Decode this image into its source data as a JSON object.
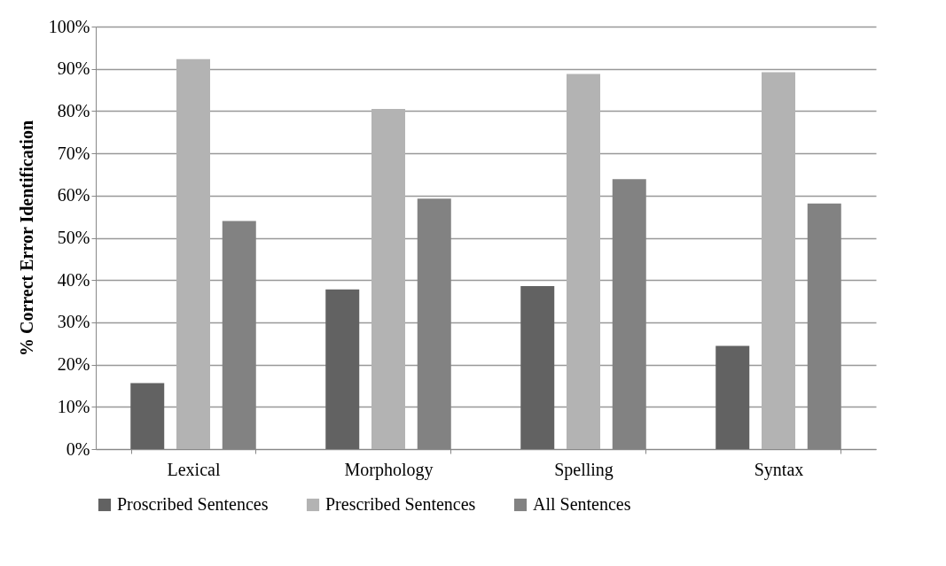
{
  "chart_data": {
    "type": "bar",
    "ylabel": "% Correct Error Identification",
    "categories": [
      "Lexical",
      "Morphology",
      "Spelling",
      "Syntax"
    ],
    "series": [
      {
        "name": "Proscribed Sentences",
        "color": "#626262",
        "values": [
          15.6,
          37.8,
          38.6,
          24.4
        ]
      },
      {
        "name": "Prescribed Sentences",
        "color": "#b3b3b3",
        "values": [
          92.3,
          80.5,
          88.8,
          89.2
        ]
      },
      {
        "name": "All Sentences",
        "color": "#828282",
        "values": [
          54.0,
          59.3,
          63.9,
          58.1
        ]
      }
    ],
    "ylim": [
      0,
      100
    ],
    "yticks": [
      {
        "value": 0,
        "label": "0%"
      },
      {
        "value": 10,
        "label": "10%"
      },
      {
        "value": 20,
        "label": "20%"
      },
      {
        "value": 30,
        "label": "30%"
      },
      {
        "value": 40,
        "label": "40%"
      },
      {
        "value": 50,
        "label": "50%"
      },
      {
        "value": 60,
        "label": "60%"
      },
      {
        "value": 70,
        "label": "70%"
      },
      {
        "value": 80,
        "label": "80%"
      },
      {
        "value": 90,
        "label": "90%"
      },
      {
        "value": 100,
        "label": "100%"
      }
    ],
    "grid": "y",
    "legend": "bottom"
  }
}
